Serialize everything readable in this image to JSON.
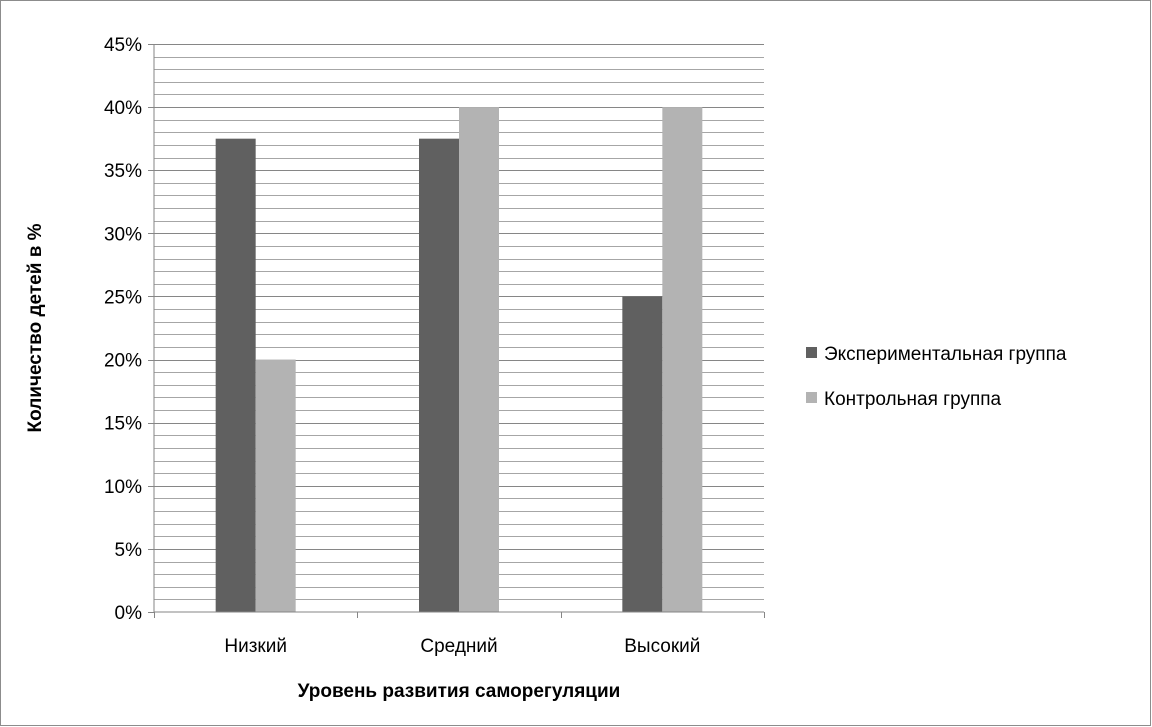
{
  "chart_data": {
    "type": "bar",
    "title": "",
    "xlabel": "Уровень развития саморегуляции",
    "ylabel": "Количество детей в %",
    "categories": [
      "Низкий",
      "Средний",
      "Высокий"
    ],
    "series": [
      {
        "name": "Экспериментальная группа",
        "values": [
          37.5,
          37.5,
          25
        ],
        "color": "#606060"
      },
      {
        "name": "Контрольная группа",
        "values": [
          20,
          40,
          40
        ],
        "color": "#b3b3b3"
      }
    ],
    "ylim": [
      0,
      45
    ],
    "yticks": [
      0,
      5,
      10,
      15,
      20,
      25,
      30,
      35,
      40,
      45
    ],
    "ytick_labels": [
      "0%",
      "5%",
      "10%",
      "15%",
      "20%",
      "25%",
      "30%",
      "35%",
      "40%",
      "45%"
    ],
    "minor_gridline_step": 1,
    "grid": true,
    "legend_position": "right"
  }
}
